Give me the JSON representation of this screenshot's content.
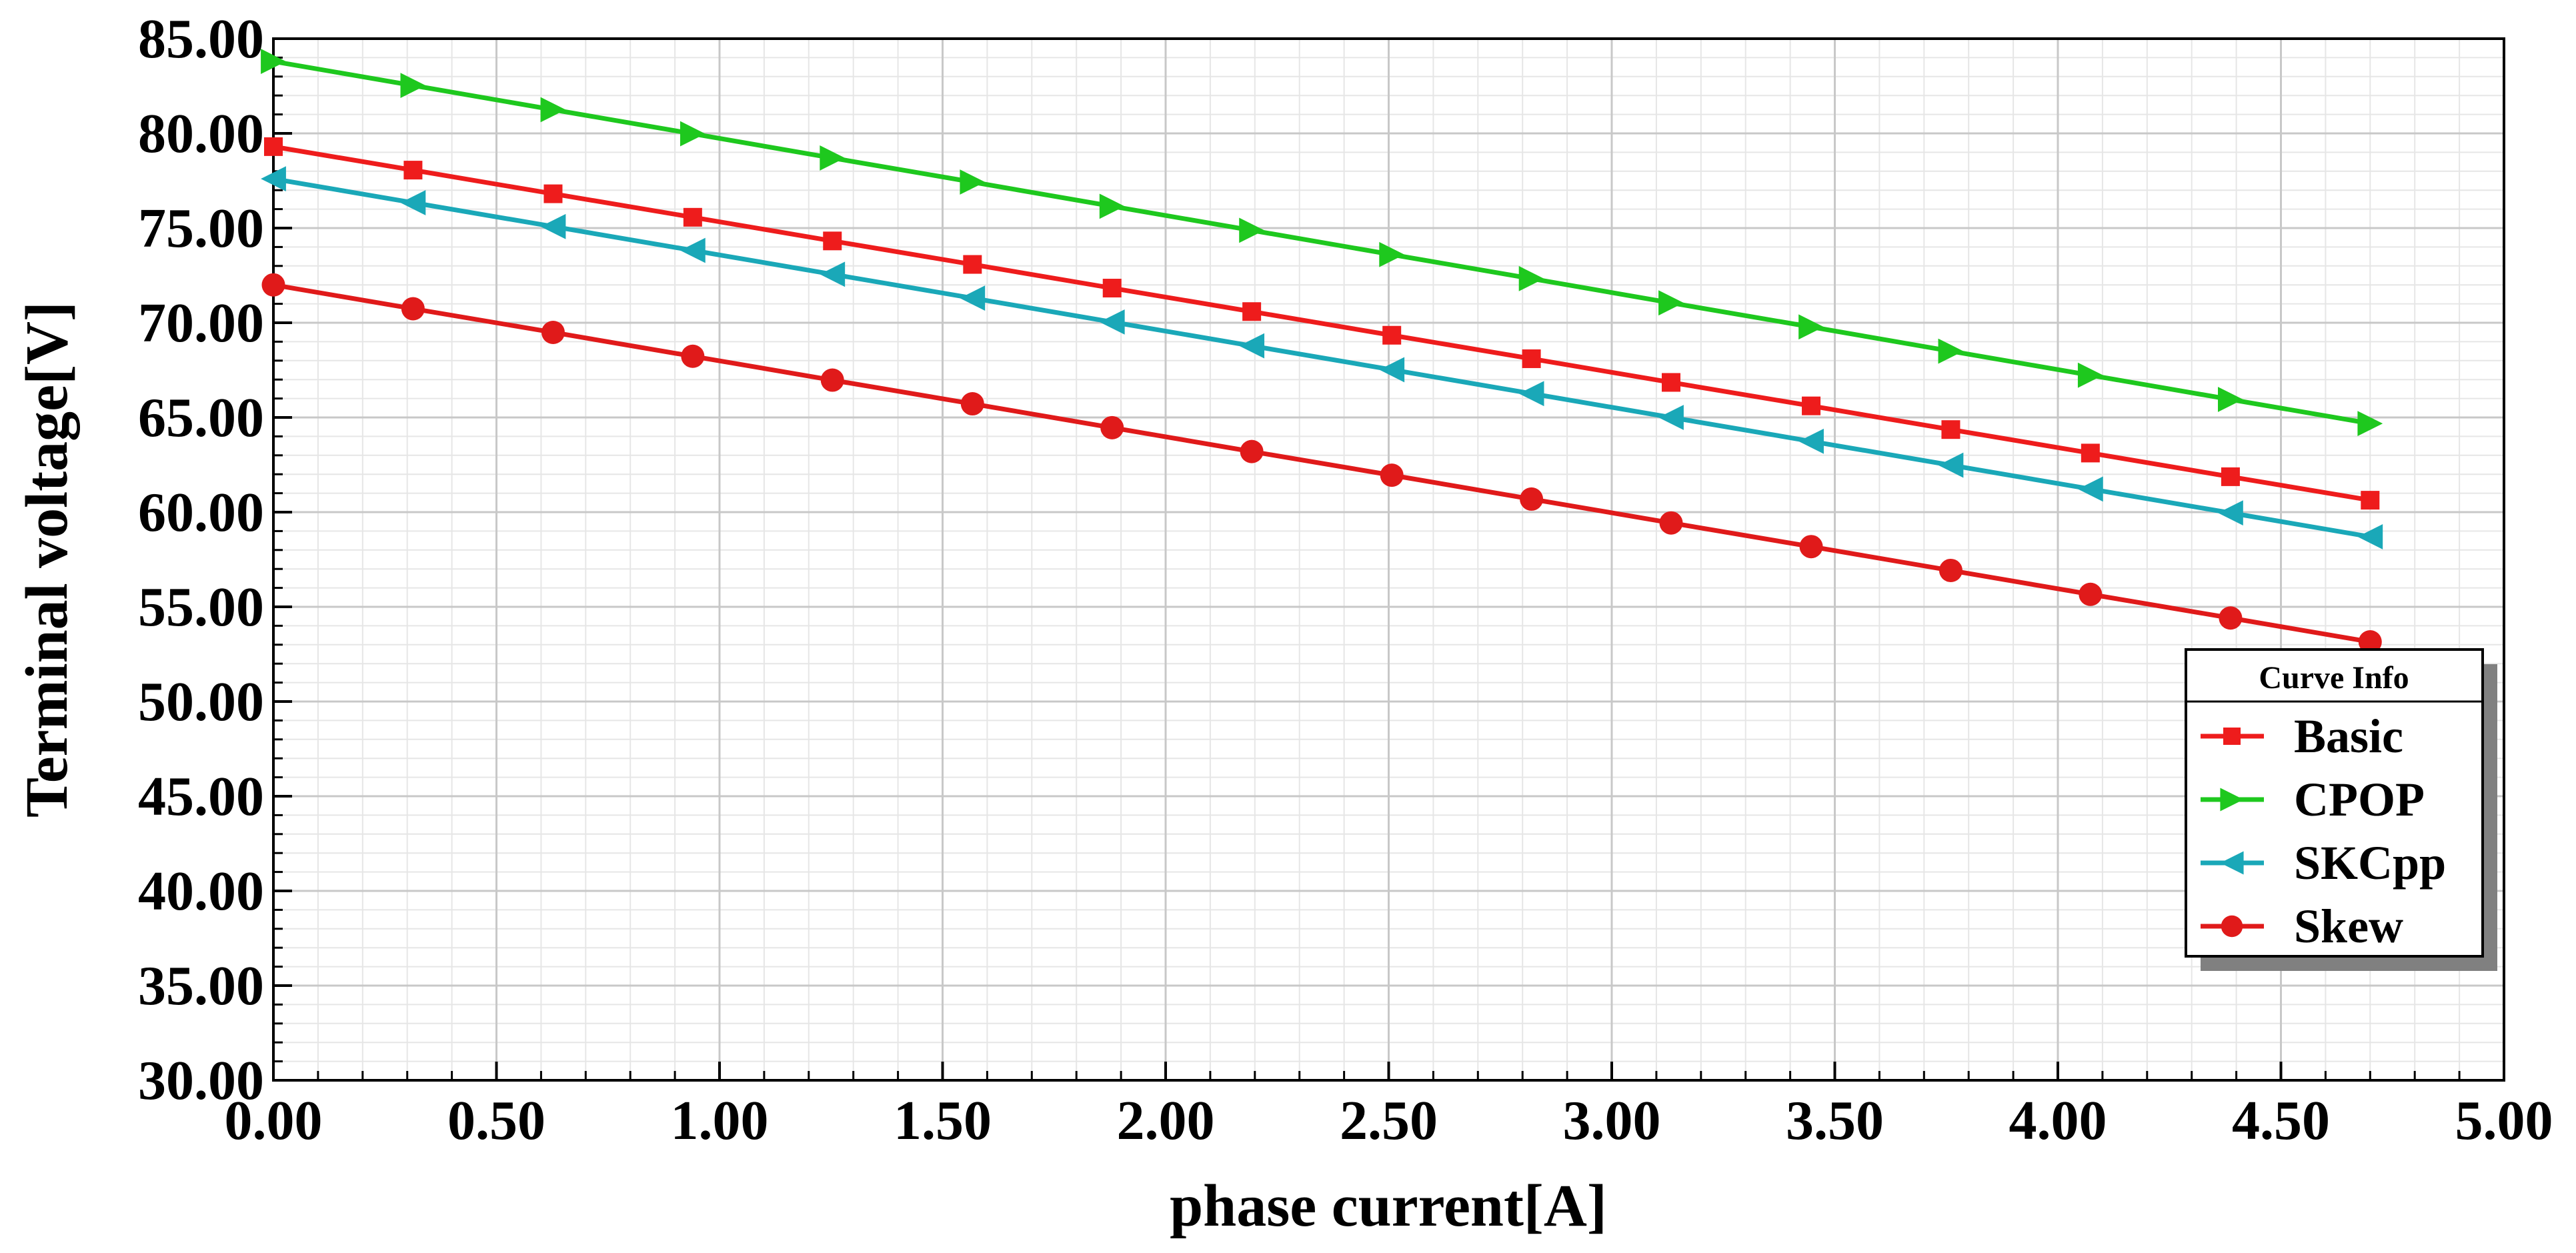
{
  "chart_data": {
    "type": "line",
    "xlabel": "phase current[A]",
    "ylabel": "Terminal voltage[V]",
    "xlim": [
      0,
      5
    ],
    "ylim": [
      30,
      85
    ],
    "x_ticks": [
      "0.00",
      "0.50",
      "1.00",
      "1.50",
      "2.00",
      "2.50",
      "3.00",
      "3.50",
      "4.00",
      "4.50",
      "5.00"
    ],
    "y_ticks": [
      "30.00",
      "35.00",
      "40.00",
      "45.00",
      "50.00",
      "55.00",
      "60.00",
      "65.00",
      "70.00",
      "75.00",
      "80.00",
      "85.00"
    ],
    "grid": true,
    "legend": {
      "title": "Curve Info",
      "placement": "right"
    },
    "x": [
      0.0,
      0.313,
      0.627,
      0.94,
      1.253,
      1.567,
      1.88,
      2.193,
      2.507,
      2.82,
      3.133,
      3.447,
      3.76,
      4.073,
      4.387,
      4.7
    ],
    "series": [
      {
        "name": "Basic",
        "color": "#ee1c1c",
        "marker": "square",
        "values": [
          79.3,
          78.06,
          76.81,
          75.57,
          74.32,
          73.08,
          71.83,
          70.59,
          69.34,
          68.1,
          66.85,
          65.61,
          64.36,
          63.12,
          61.87,
          60.63
        ]
      },
      {
        "name": "CPOP",
        "color": "#1ec81e",
        "marker": "triangle-right",
        "values": [
          83.8,
          82.53,
          81.25,
          79.98,
          78.7,
          77.43,
          76.15,
          74.88,
          73.6,
          72.33,
          71.05,
          69.78,
          68.5,
          67.23,
          65.95,
          64.68
        ]
      },
      {
        "name": "SKCpp",
        "color": "#1aa8b8",
        "marker": "triangle-left",
        "values": [
          77.6,
          76.34,
          75.08,
          73.82,
          72.56,
          71.3,
          70.04,
          68.78,
          67.52,
          66.26,
          65.0,
          63.74,
          62.48,
          61.22,
          59.96,
          58.7
        ]
      },
      {
        "name": "Skew",
        "color": "#e01a1a",
        "marker": "circle",
        "values": [
          72.0,
          70.74,
          69.49,
          68.23,
          66.97,
          65.72,
          64.46,
          63.2,
          61.95,
          60.69,
          59.43,
          58.18,
          56.92,
          55.66,
          54.41,
          53.15
        ]
      }
    ]
  }
}
